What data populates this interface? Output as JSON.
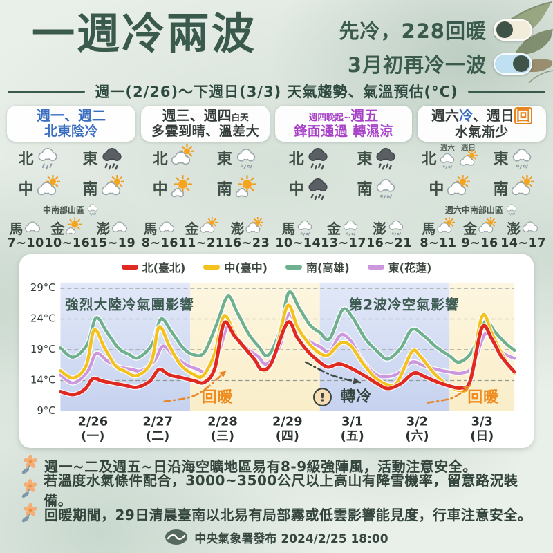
{
  "header": {
    "title": "一週冷兩波",
    "tagline1": "先冷，228回暖",
    "tagline2": "3月初再冷一波",
    "toggle1_state": "off",
    "toggle2_state": "on",
    "period": "週一(2/26)～下週日(3/3) 天氣趨勢、氣溫預估(°C)"
  },
  "colors": {
    "title_green": "#3b5a4e",
    "col1_blue": "#3a6ec0",
    "col3_purple": "#a843c8",
    "accent_orange": "#e8831e",
    "warm_label": "#ef8a1c"
  },
  "columns": [
    {
      "head": {
        "line1": [
          {
            "text": "週一、週二",
            "color": "#3a6ec0"
          }
        ],
        "line2": [
          {
            "text": "北東陰冷",
            "color": "#3a6ec0"
          }
        ]
      },
      "regions": [
        {
          "label": "北",
          "icons": [
            {
              "type": "rain"
            }
          ]
        },
        {
          "label": "東",
          "icons": [
            {
              "type": "darkrain"
            }
          ]
        },
        {
          "label": "中",
          "icons": [
            {
              "type": "partly"
            }
          ]
        },
        {
          "label": "南",
          "icons": [
            {
              "type": "partly"
            }
          ]
        }
      ],
      "mountain": {
        "text": "中南部山區",
        "icon": "drizzle"
      },
      "islands": [
        {
          "label": "馬",
          "icon": "cloudy",
          "temp": "7~10"
        },
        {
          "label": "金",
          "icon": "sunny",
          "temp": "10~16"
        },
        {
          "label": "澎",
          "icon": "cloudy",
          "temp": "15~19"
        }
      ]
    },
    {
      "head": {
        "line1": [
          {
            "text": "週三、週四",
            "color": "#353d3a"
          },
          {
            "text": "白天",
            "color": "#353d3a",
            "small": true
          }
        ],
        "line2": [
          {
            "text": "多雲到晴、溫差大",
            "color": "#353d3a"
          }
        ]
      },
      "regions": [
        {
          "label": "北",
          "icons": [
            {
              "type": "partly"
            }
          ]
        },
        {
          "label": "東",
          "icons": [
            {
              "type": "drizzle"
            }
          ]
        },
        {
          "label": "中",
          "icons": [
            {
              "type": "sunny"
            }
          ]
        },
        {
          "label": "南",
          "icons": [
            {
              "type": "sunny"
            }
          ]
        }
      ],
      "mountain": null,
      "islands": [
        {
          "label": "馬",
          "icon": "cloudy",
          "temp": "8~16"
        },
        {
          "label": "金",
          "icon": "partly",
          "temp": "11~21"
        },
        {
          "label": "澎",
          "icon": "partly",
          "temp": "16~23"
        }
      ]
    },
    {
      "head": {
        "line1": [
          {
            "text": "週四晚起~",
            "color": "#a843c8",
            "small": true
          },
          {
            "text": "週五",
            "color": "#a843c8"
          }
        ],
        "line2": [
          {
            "text": "鋒面通過 轉濕涼",
            "color": "#a843c8"
          }
        ]
      },
      "regions": [
        {
          "label": "北",
          "icons": [
            {
              "type": "darkrain"
            }
          ]
        },
        {
          "label": "東",
          "icons": [
            {
              "type": "darkrain"
            }
          ]
        },
        {
          "label": "中",
          "icons": [
            {
              "type": "darkrain"
            }
          ]
        },
        {
          "label": "南",
          "icons": [
            {
              "type": "drizzle"
            }
          ]
        }
      ],
      "mountain": null,
      "islands": [
        {
          "label": "馬",
          "icon": "drizzle",
          "temp": "10~14"
        },
        {
          "label": "金",
          "icon": "drizzle",
          "temp": "13~17"
        },
        {
          "label": "澎",
          "icon": "drizzle",
          "temp": "16~21"
        }
      ]
    },
    {
      "head": {
        "line1": [
          {
            "text": "週六",
            "color": "#353d3a"
          },
          {
            "text": "冷",
            "color": "#3a6ec0"
          },
          {
            "text": "、週日",
            "color": "#353d3a"
          },
          {
            "text": "回",
            "color": "#e8831e",
            "boxed": true
          }
        ],
        "line2": [
          {
            "text": "水氣漸少",
            "color": "#353d3a"
          }
        ]
      },
      "regions": [
        {
          "label": "北",
          "icons": [
            {
              "type": "drizzle",
              "sub": "週六"
            },
            {
              "type": "partly",
              "sub": "週日"
            }
          ]
        },
        {
          "label": "東",
          "icons": [
            {
              "type": "drizzle"
            }
          ]
        },
        {
          "label": "中",
          "icons": [
            {
              "type": "partly"
            }
          ]
        },
        {
          "label": "南",
          "icons": [
            {
              "type": "partly"
            }
          ]
        }
      ],
      "mountain": {
        "text": "週六中南部山區",
        "icon": "drizzle"
      },
      "islands": [
        {
          "label": "馬",
          "icon": "partly",
          "temp": "8~11"
        },
        {
          "label": "金",
          "icon": "partly",
          "temp": "9~16"
        },
        {
          "label": "澎",
          "icon": "cloudy",
          "temp": "14~17"
        }
      ]
    }
  ],
  "chart_data": {
    "type": "line",
    "title": "",
    "xlabel": "",
    "ylabel": "°C",
    "ylim": [
      9,
      29.8
    ],
    "yticks": [
      9,
      14,
      19,
      24,
      29
    ],
    "grid": true,
    "legend_position": "top",
    "x_labels": [
      {
        "date": "2/26",
        "weekday": "(一)"
      },
      {
        "date": "2/27",
        "weekday": "(二)"
      },
      {
        "date": "2/28",
        "weekday": "(三)"
      },
      {
        "date": "2/29",
        "weekday": "(四)"
      },
      {
        "date": "3/1",
        "weekday": "(五)"
      },
      {
        "date": "3/2",
        "weekday": "(六)"
      },
      {
        "date": "3/3",
        "weekday": "(日)"
      }
    ],
    "bands": [
      {
        "from": 0,
        "to": 2,
        "kind": "cold"
      },
      {
        "from": 2,
        "to": 4,
        "kind": "warm"
      },
      {
        "from": 4,
        "to": 6,
        "kind": "cold"
      },
      {
        "from": 6,
        "to": 7,
        "kind": "warm"
      }
    ],
    "series": [
      {
        "name": "北(臺北)",
        "color": "#e02a21",
        "z": 4,
        "points": [
          [
            0,
            12.2
          ],
          [
            0.2,
            11.7
          ],
          [
            0.38,
            12.6
          ],
          [
            0.5,
            14.3
          ],
          [
            0.65,
            13.9
          ],
          [
            0.85,
            13.5
          ],
          [
            1.0,
            13.2
          ],
          [
            1.18,
            12.9
          ],
          [
            1.38,
            13.9
          ],
          [
            1.52,
            15.8
          ],
          [
            1.68,
            14.9
          ],
          [
            1.85,
            14.5
          ],
          [
            2.05,
            14.0
          ],
          [
            2.22,
            13.7
          ],
          [
            2.38,
            16.0
          ],
          [
            2.52,
            23.3
          ],
          [
            2.68,
            21.3
          ],
          [
            2.85,
            19.2
          ],
          [
            3.0,
            17.3
          ],
          [
            3.1,
            15.8
          ],
          [
            3.25,
            16.8
          ],
          [
            3.5,
            23.4
          ],
          [
            3.65,
            21.0
          ],
          [
            3.8,
            18.9
          ],
          [
            3.95,
            17.4
          ],
          [
            4.12,
            16.2
          ],
          [
            4.3,
            16.7
          ],
          [
            4.5,
            15.9
          ],
          [
            4.7,
            14.7
          ],
          [
            4.9,
            13.4
          ],
          [
            5.05,
            12.7
          ],
          [
            5.25,
            13.5
          ],
          [
            5.45,
            15.2
          ],
          [
            5.62,
            14.6
          ],
          [
            5.8,
            13.8
          ],
          [
            6.0,
            13.1
          ],
          [
            6.18,
            12.8
          ],
          [
            6.32,
            14.0
          ],
          [
            6.5,
            22.6
          ],
          [
            6.65,
            20.8
          ],
          [
            6.8,
            17.9
          ],
          [
            7.0,
            15.4
          ]
        ]
      },
      {
        "name": "中(臺中)",
        "color": "#f3c21c",
        "z": 3,
        "points": [
          [
            0,
            15.6
          ],
          [
            0.2,
            14.4
          ],
          [
            0.4,
            16.5
          ],
          [
            0.52,
            22.2
          ],
          [
            0.68,
            19.3
          ],
          [
            0.85,
            16.4
          ],
          [
            1.0,
            15.5
          ],
          [
            1.18,
            14.8
          ],
          [
            1.4,
            17.0
          ],
          [
            1.52,
            22.7
          ],
          [
            1.68,
            19.6
          ],
          [
            1.85,
            16.6
          ],
          [
            2.05,
            15.0
          ],
          [
            2.2,
            14.8
          ],
          [
            2.38,
            18.5
          ],
          [
            2.52,
            24.5
          ],
          [
            2.68,
            21.8
          ],
          [
            2.85,
            19.0
          ],
          [
            3.0,
            17.4
          ],
          [
            3.15,
            15.5
          ],
          [
            3.3,
            18.0
          ],
          [
            3.5,
            26.1
          ],
          [
            3.65,
            22.8
          ],
          [
            3.8,
            20.4
          ],
          [
            3.95,
            18.8
          ],
          [
            4.12,
            18.1
          ],
          [
            4.32,
            20.1
          ],
          [
            4.48,
            19.6
          ],
          [
            4.65,
            17.0
          ],
          [
            4.85,
            14.5
          ],
          [
            5.05,
            13.3
          ],
          [
            5.2,
            13.8
          ],
          [
            5.42,
            18.7
          ],
          [
            5.55,
            17.9
          ],
          [
            5.75,
            15.3
          ],
          [
            5.95,
            13.4
          ],
          [
            6.15,
            12.4
          ],
          [
            6.3,
            13.6
          ],
          [
            6.5,
            24.4
          ],
          [
            6.65,
            21.7
          ],
          [
            6.8,
            18.5
          ],
          [
            7.0,
            15.1
          ]
        ]
      },
      {
        "name": "南(高雄)",
        "color": "#6fb08e",
        "z": 1,
        "points": [
          [
            0,
            19.3
          ],
          [
            0.2,
            17.8
          ],
          [
            0.42,
            20.0
          ],
          [
            0.55,
            24.2
          ],
          [
            0.72,
            21.8
          ],
          [
            0.9,
            19.2
          ],
          [
            1.05,
            18.3
          ],
          [
            1.2,
            17.7
          ],
          [
            1.42,
            20.0
          ],
          [
            1.55,
            24.0
          ],
          [
            1.72,
            21.8
          ],
          [
            1.9,
            19.2
          ],
          [
            2.05,
            18.2
          ],
          [
            2.22,
            18.6
          ],
          [
            2.42,
            23.5
          ],
          [
            2.58,
            27.7
          ],
          [
            2.72,
            25.2
          ],
          [
            2.9,
            21.6
          ],
          [
            3.05,
            19.6
          ],
          [
            3.2,
            18.1
          ],
          [
            3.38,
            22.0
          ],
          [
            3.52,
            28.3
          ],
          [
            3.68,
            25.8
          ],
          [
            3.85,
            23.0
          ],
          [
            4.0,
            21.8
          ],
          [
            4.15,
            20.8
          ],
          [
            4.35,
            25.5
          ],
          [
            4.5,
            24.3
          ],
          [
            4.7,
            20.8
          ],
          [
            4.9,
            18.6
          ],
          [
            5.05,
            17.5
          ],
          [
            5.25,
            19.3
          ],
          [
            5.42,
            22.3
          ],
          [
            5.6,
            21.3
          ],
          [
            5.8,
            19.4
          ],
          [
            6.0,
            18.0
          ],
          [
            6.15,
            17.0
          ],
          [
            6.35,
            18.8
          ],
          [
            6.55,
            23.6
          ],
          [
            6.7,
            21.9
          ],
          [
            6.85,
            20.2
          ],
          [
            7.0,
            18.9
          ]
        ]
      },
      {
        "name": "東(花蓮)",
        "color": "#cd97de",
        "z": 2,
        "points": [
          [
            0,
            14.9
          ],
          [
            0.2,
            13.6
          ],
          [
            0.42,
            15.5
          ],
          [
            0.55,
            18.4
          ],
          [
            0.72,
            17.2
          ],
          [
            0.9,
            16.2
          ],
          [
            1.1,
            15.8
          ],
          [
            1.25,
            15.6
          ],
          [
            1.45,
            17.2
          ],
          [
            1.58,
            19.6
          ],
          [
            1.75,
            18.0
          ],
          [
            1.95,
            16.5
          ],
          [
            2.1,
            15.9
          ],
          [
            2.25,
            15.6
          ],
          [
            2.45,
            19.0
          ],
          [
            2.58,
            22.8
          ],
          [
            2.72,
            20.9
          ],
          [
            2.9,
            19.0
          ],
          [
            3.05,
            17.9
          ],
          [
            3.18,
            16.7
          ],
          [
            3.38,
            19.5
          ],
          [
            3.52,
            24.8
          ],
          [
            3.68,
            21.9
          ],
          [
            3.85,
            20.3
          ],
          [
            4.0,
            19.5
          ],
          [
            4.15,
            18.7
          ],
          [
            4.32,
            21.4
          ],
          [
            4.48,
            20.4
          ],
          [
            4.65,
            17.3
          ],
          [
            4.85,
            15.1
          ],
          [
            5.0,
            14.6
          ],
          [
            5.2,
            15.1
          ],
          [
            5.42,
            17.0
          ],
          [
            5.6,
            16.4
          ],
          [
            5.8,
            15.8
          ],
          [
            6.0,
            15.4
          ],
          [
            6.18,
            15.2
          ],
          [
            6.35,
            16.3
          ],
          [
            6.55,
            21.6
          ],
          [
            6.7,
            19.7
          ],
          [
            6.85,
            18.3
          ],
          [
            7.0,
            17.6
          ]
        ]
      }
    ],
    "annotations": [
      {
        "text": "強烈大陸冷氣團影響",
        "day": 0.07,
        "temp": 26.2,
        "anchor": "start",
        "color": "#3c5a50",
        "size": 20
      },
      {
        "text": "第2波冷空氣影響",
        "day": 5.3,
        "temp": 26.2,
        "anchor": "middle",
        "color": "#3c5a50",
        "size": 20
      },
      {
        "text": "回暖",
        "day": 2.42,
        "temp": 11.2,
        "anchor": "middle",
        "color": "#ef8a1c",
        "size": 22
      },
      {
        "text": "轉冷",
        "day": 4.56,
        "temp": 11.3,
        "anchor": "middle",
        "color": "#33433d",
        "size": 22
      },
      {
        "text": "回暖",
        "day": 6.52,
        "temp": 11.2,
        "anchor": "middle",
        "color": "#ef8a1c",
        "size": 22
      }
    ],
    "warn_badge": {
      "day": 4.04,
      "temp": 11.3
    },
    "arrows": [
      {
        "color": "#e8872a",
        "pts": [
          [
            1.6,
            10.6
          ],
          [
            2.1,
            11.7
          ],
          [
            2.56,
            15.6
          ]
        ]
      },
      {
        "color": "#3f4a44",
        "pts": [
          [
            3.78,
            17.0
          ],
          [
            4.2,
            14.8
          ],
          [
            4.62,
            13.7
          ]
        ]
      },
      {
        "color": "#e8872a",
        "pts": [
          [
            5.66,
            10.4
          ],
          [
            6.05,
            11.2
          ],
          [
            6.32,
            13.2
          ]
        ]
      }
    ]
  },
  "notes": [
    "週一~二及週五~日沿海空曠地區易有8-9級強陣風，活動注意安全。",
    "若溫度水氣條件配合，3000~3500公尺以上高山有降雪機率，留意路況裝備。",
    "回暖期間，29日清晨臺南以北易有局部霧或低雲影響能見度，行車注意安全。"
  ],
  "footer": {
    "issuer": "中央氣象署發布 2024/2/25 18:00"
  }
}
